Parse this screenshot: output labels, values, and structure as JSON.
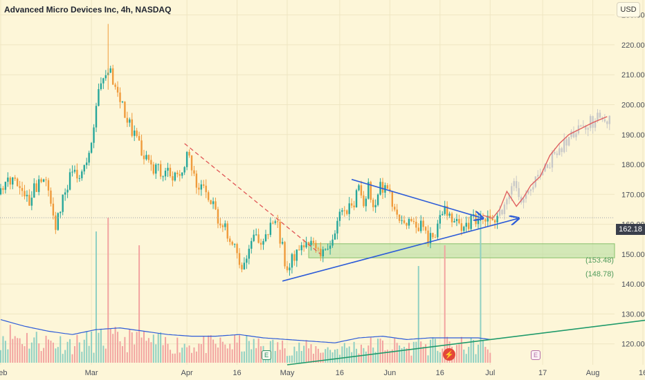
{
  "header": {
    "title": "Advanced Micro Devices Inc, 4h, NASDAQ",
    "currency_button": "USD"
  },
  "events": {
    "earnings_label": "E",
    "dividend_symbol": "⚡"
  },
  "colors": {
    "up": "#26a69a",
    "down": "#ef9a3a",
    "trend": "#2c5bd8",
    "resistance": "#e05555",
    "support_zone": "#b8e0a2",
    "volume_ma": "#2c5bd8",
    "volume_trend": "#1e9a6a",
    "projection": "#e06060"
  },
  "chart_data": {
    "type": "candlestick",
    "title": "Advanced Micro Devices Inc, 4h, NASDAQ",
    "interval": "4h",
    "y_axis": {
      "position": "right",
      "ylim": [
        113,
        235
      ],
      "ticks": [
        120,
        130,
        140,
        150,
        160,
        170,
        180,
        190,
        200,
        210,
        220,
        230
      ],
      "tick_labels": [
        "120.00",
        "130.00",
        "140.00",
        "150.00",
        "160.00",
        "170.00",
        "180.00",
        "190.00",
        "200.00",
        "210.00",
        "220.00",
        "230.00"
      ]
    },
    "x_axis": {
      "labels": [
        "Feb",
        "Mar",
        "Apr",
        "16",
        "May",
        "16",
        "Jun",
        "16",
        "Jul",
        "17",
        "Aug",
        "16"
      ]
    },
    "x_label_bars": [
      0,
      38,
      78,
      99,
      120,
      142,
      163,
      184,
      205,
      227,
      248,
      269
    ],
    "last_price": 162.18,
    "last_price_label": "162.18",
    "support_zone": {
      "high": 153.48,
      "low": 148.78,
      "labels": [
        "(153.48)",
        "(148.78)"
      ]
    },
    "key_closes": [
      [
        0,
        170
      ],
      [
        4,
        175
      ],
      [
        8,
        172
      ],
      [
        12,
        168
      ],
      [
        16,
        175
      ],
      [
        20,
        172
      ],
      [
        23,
        160
      ],
      [
        26,
        169
      ],
      [
        30,
        178
      ],
      [
        33,
        175
      ],
      [
        36,
        180
      ],
      [
        38,
        185
      ],
      [
        40,
        200
      ],
      [
        42,
        208
      ],
      [
        44,
        212
      ],
      [
        46,
        210
      ],
      [
        48,
        205
      ],
      [
        52,
        198
      ],
      [
        56,
        190
      ],
      [
        60,
        182
      ],
      [
        64,
        178
      ],
      [
        68,
        178
      ],
      [
        72,
        177
      ],
      [
        76,
        175
      ],
      [
        78,
        185
      ],
      [
        80,
        177
      ],
      [
        83,
        173
      ],
      [
        86,
        170
      ],
      [
        88,
        168
      ],
      [
        90,
        163
      ],
      [
        94,
        158
      ],
      [
        98,
        152
      ],
      [
        101,
        146
      ],
      [
        104,
        152
      ],
      [
        107,
        156
      ],
      [
        110,
        153
      ],
      [
        113,
        160
      ],
      [
        116,
        160
      ],
      [
        118,
        152
      ],
      [
        120,
        143
      ],
      [
        122,
        148
      ],
      [
        124,
        152
      ],
      [
        128,
        153
      ],
      [
        132,
        151
      ],
      [
        136,
        150
      ],
      [
        138,
        153
      ],
      [
        140,
        158
      ],
      [
        142,
        163
      ],
      [
        144,
        165
      ],
      [
        148,
        168
      ],
      [
        150,
        172
      ],
      [
        152,
        168
      ],
      [
        154,
        173
      ],
      [
        156,
        164
      ],
      [
        159,
        173
      ],
      [
        161,
        172
      ],
      [
        164,
        168
      ],
      [
        167,
        161
      ],
      [
        170,
        161
      ],
      [
        173,
        160
      ],
      [
        176,
        160
      ],
      [
        179,
        156
      ],
      [
        182,
        158
      ],
      [
        185,
        165
      ],
      [
        188,
        163
      ],
      [
        191,
        160
      ],
      [
        194,
        159
      ],
      [
        197,
        161
      ],
      [
        200,
        163
      ],
      [
        203,
        163
      ],
      [
        206,
        160
      ],
      [
        209,
        163
      ],
      [
        212,
        168
      ],
      [
        215,
        172
      ],
      [
        219,
        168
      ],
      [
        222,
        172
      ],
      [
        225,
        176
      ],
      [
        229,
        180
      ],
      [
        233,
        184
      ],
      [
        237,
        188
      ],
      [
        241,
        192
      ],
      [
        245,
        193
      ],
      [
        249,
        195
      ],
      [
        252,
        196
      ],
      [
        255,
        195
      ]
    ],
    "volume_envelope": [
      [
        0,
        26
      ],
      [
        10,
        22
      ],
      [
        20,
        19
      ],
      [
        30,
        17
      ],
      [
        40,
        20
      ],
      [
        50,
        21
      ],
      [
        60,
        19
      ],
      [
        70,
        17
      ],
      [
        80,
        16
      ],
      [
        90,
        16
      ],
      [
        100,
        17
      ],
      [
        110,
        15
      ],
      [
        120,
        14
      ],
      [
        130,
        13
      ],
      [
        140,
        12
      ],
      [
        150,
        15
      ],
      [
        160,
        16
      ],
      [
        170,
        14
      ],
      [
        180,
        15
      ],
      [
        190,
        15
      ],
      [
        200,
        15
      ],
      [
        205,
        14
      ]
    ],
    "annotations": [
      {
        "kind": "resistance_dashed",
        "from": [
          77,
          187
        ],
        "to": [
          134,
          150
        ]
      },
      {
        "kind": "trend_support",
        "from": [
          118,
          141
        ],
        "to": [
          217,
          162
        ]
      },
      {
        "kind": "trend_resistance",
        "from": [
          147,
          175
        ],
        "to": [
          202,
          162
        ]
      },
      {
        "kind": "projection_path",
        "points": [
          [
            202,
            163
          ],
          [
            206,
            162
          ],
          [
            209,
            165
          ],
          [
            212,
            171
          ],
          [
            216,
            166
          ],
          [
            219,
            169
          ],
          [
            222,
            173
          ],
          [
            226,
            176
          ],
          [
            230,
            183
          ],
          [
            234,
            187
          ],
          [
            238,
            190
          ],
          [
            243,
            192
          ],
          [
            248,
            194
          ],
          [
            254,
            196
          ]
        ]
      },
      {
        "kind": "volume_trend",
        "from": [
          120,
          113
        ],
        "to": [
          271,
          128
        ]
      }
    ]
  }
}
